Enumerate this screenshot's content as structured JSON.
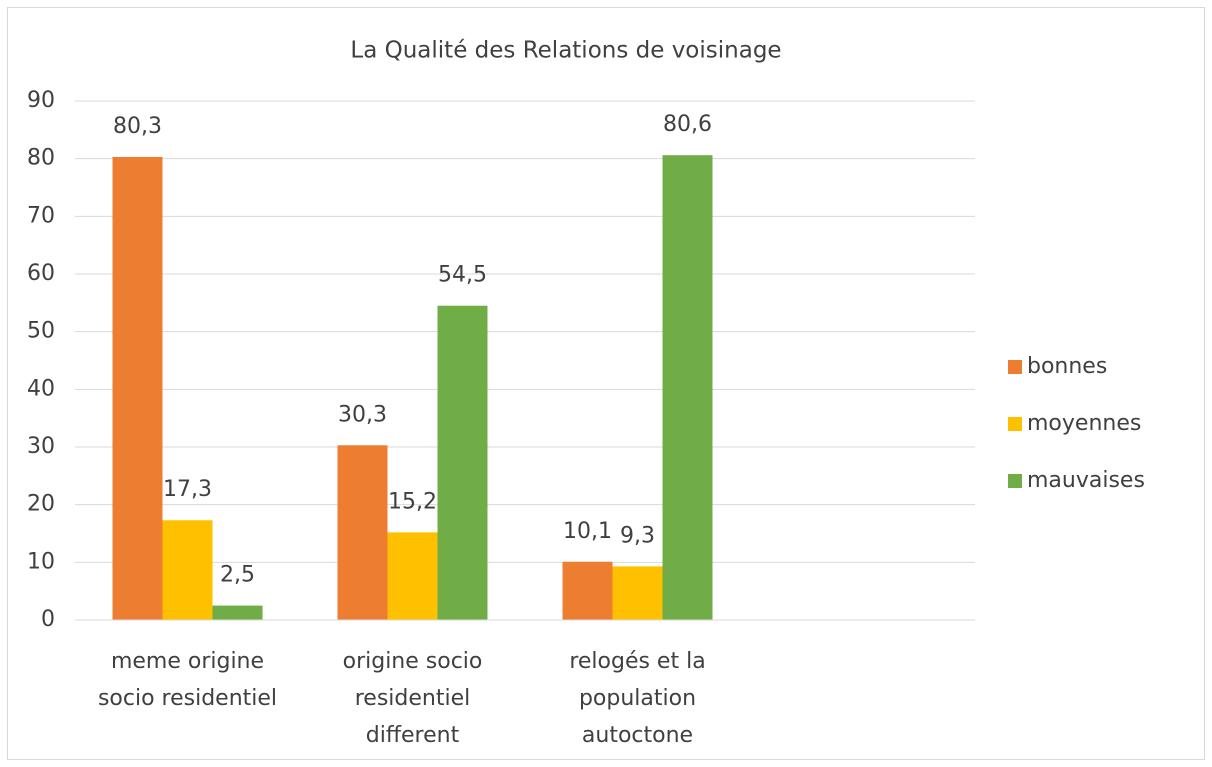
{
  "chart_data": {
    "type": "bar",
    "title": "La Qualité des Relations de voisinage",
    "categories": [
      "meme origine socio residentiel",
      "origine socio residentiel different",
      "relogés et la population autoctone",
      null
    ],
    "series": [
      {
        "name": "bonnes",
        "color": "#ed7d31",
        "values": [
          80.3,
          30.3,
          10.1,
          null
        ],
        "value_labels": [
          "80,3",
          "30,3",
          "10,1",
          null
        ]
      },
      {
        "name": "moyennes",
        "color": "#ffc000",
        "values": [
          17.3,
          15.2,
          9.3,
          null
        ],
        "value_labels": [
          "17,3",
          "15,2",
          "9,3",
          null
        ]
      },
      {
        "name": "mauvaises",
        "color": "#70ad47",
        "values": [
          2.5,
          54.5,
          80.6,
          null
        ],
        "value_labels": [
          "2,5",
          "54,5",
          "80,6",
          null
        ]
      }
    ],
    "ylim": [
      0,
      90
    ],
    "yticks": [
      0,
      10,
      20,
      30,
      40,
      50,
      60,
      70,
      80,
      90
    ],
    "grid": true,
    "legend": "right"
  }
}
